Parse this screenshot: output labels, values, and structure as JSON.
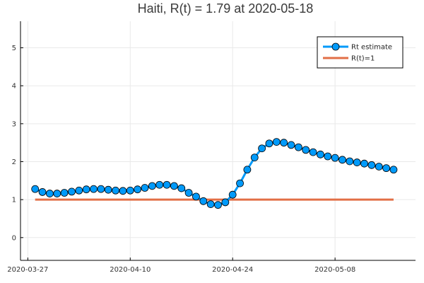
{
  "chart_data": {
    "type": "line",
    "title": "Haiti, R(t) = 1.79 at 2020-05-18",
    "xlabel": "",
    "ylabel": "",
    "start_date": "2020-03-28",
    "x_tick_labels": [
      "2020-03-27",
      "2020-04-10",
      "2020-04-24",
      "2020-05-08"
    ],
    "x_tick_dates": [
      "2020-03-27",
      "2020-04-10",
      "2020-04-24",
      "2020-05-08"
    ],
    "y_ticks": [
      0,
      1,
      2,
      3,
      4,
      5
    ],
    "ylim": [
      -0.6,
      5.7
    ],
    "xlim": [
      "2020-03-26",
      "2020-05-19"
    ],
    "grid": true,
    "legend_position": "top-right",
    "series": [
      {
        "name": "Rt estimate",
        "color": "#009AFA",
        "marker": "circle",
        "values": [
          1.28,
          1.2,
          1.16,
          1.16,
          1.18,
          1.21,
          1.24,
          1.27,
          1.28,
          1.28,
          1.26,
          1.24,
          1.23,
          1.24,
          1.27,
          1.31,
          1.36,
          1.39,
          1.39,
          1.36,
          1.3,
          1.18,
          1.08,
          0.96,
          0.88,
          0.86,
          0.93,
          1.13,
          1.43,
          1.79,
          2.11,
          2.35,
          2.48,
          2.52,
          2.5,
          2.44,
          2.38,
          2.31,
          2.25,
          2.19,
          2.14,
          2.1,
          2.05,
          2.01,
          1.98,
          1.95,
          1.91,
          1.87,
          1.83,
          1.79
        ]
      },
      {
        "name": "R(t)=1",
        "color": "#E26F46",
        "marker": "none",
        "values": [
          1,
          1
        ]
      }
    ]
  }
}
